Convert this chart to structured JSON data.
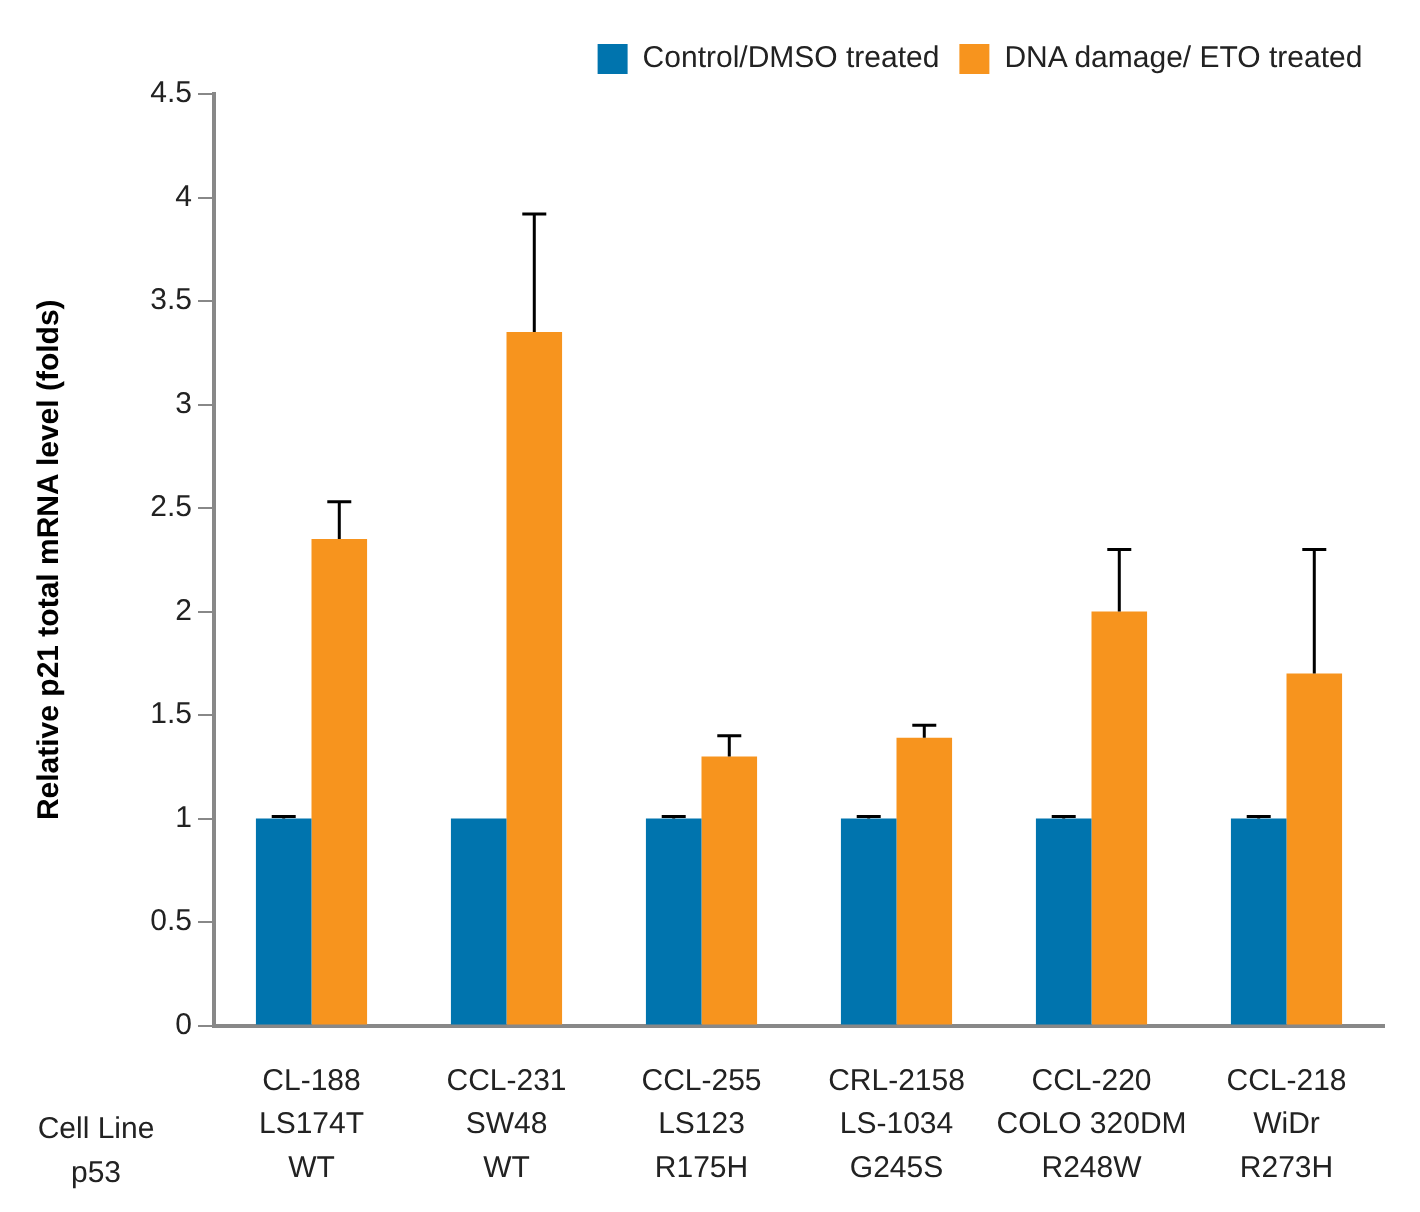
{
  "chart_data": {
    "type": "bar",
    "ylabel": "Relative p21 total mRNA level (folds)",
    "categories": [
      "CL-188\nLS174T\nWT",
      "CCL-231\nSW48\nWT",
      "CCL-255\nLS123\nR175H",
      "CRL-2158\nLS-1034\nG245S",
      "CCL-220\nCOLO 320DM\nR248W",
      "CCL-218\nWiDr\nR273H"
    ],
    "series": [
      {
        "name": "Control/DMSO treated",
        "color": "#0074ae",
        "values": [
          1,
          1,
          1,
          1,
          1,
          1
        ],
        "errors": [
          [
            1,
            1.01
          ],
          null,
          [
            1,
            1.01
          ],
          [
            1,
            1.01
          ],
          [
            1,
            1.01
          ],
          [
            1,
            1.01
          ]
        ]
      },
      {
        "name": "DNA damage/ ETO treated",
        "color": "#f7941e",
        "values": [
          2.35,
          3.35,
          1.3,
          1.39,
          2.0,
          1.7
        ],
        "errors": [
          [
            2.35,
            2.53
          ],
          [
            3.35,
            3.92
          ],
          [
            1.3,
            1.4
          ],
          [
            1.39,
            1.45
          ],
          [
            2.0,
            2.3
          ],
          [
            1.7,
            2.3
          ]
        ]
      }
    ],
    "ylim": [
      0,
      4.5
    ],
    "yticks": [
      0,
      0.5,
      1,
      1.5,
      2,
      2.5,
      3,
      3.5,
      4,
      4.5
    ],
    "grid": false,
    "legend": "top right",
    "annotations": [
      "Cell Line\np53"
    ]
  }
}
